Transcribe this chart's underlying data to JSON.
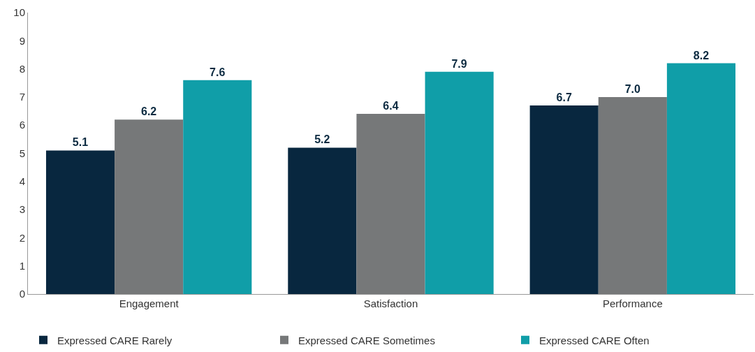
{
  "chart_data": {
    "type": "bar",
    "categories": [
      "Engagement",
      "Satisfaction",
      "Performance"
    ],
    "series": [
      {
        "name": "Expressed CARE Rarely",
        "color": "#08273f",
        "values": [
          5.1,
          5.2,
          6.7
        ],
        "value_labels": [
          "5.1",
          "5.2",
          "6.7"
        ]
      },
      {
        "name": "Expressed CARE Sometimes",
        "color": "#767879",
        "values": [
          6.2,
          6.4,
          7.0
        ],
        "value_labels": [
          "6.2",
          "6.4",
          "7.0"
        ]
      },
      {
        "name": "Expressed CARE Often",
        "color": "#109ea8",
        "values": [
          7.6,
          7.9,
          8.2
        ],
        "value_labels": [
          "7.6",
          "7.9",
          "8.2"
        ]
      }
    ],
    "ylim": [
      0,
      10
    ],
    "yticks": [
      0,
      1,
      2,
      3,
      4,
      5,
      6,
      7,
      8,
      9,
      10
    ],
    "legend": "bottom"
  }
}
